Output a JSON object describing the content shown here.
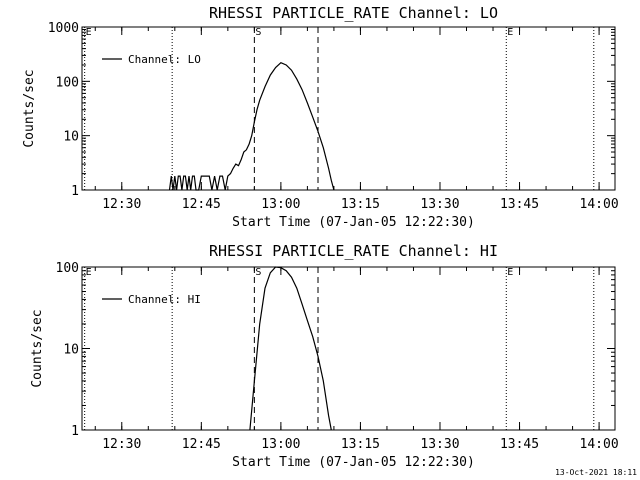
{
  "chart_data": [
    {
      "type": "line",
      "title": "RHESSI PARTICLE_RATE Channel: LO",
      "xlabel": "Start Time (07-Jan-05 12:22:30)",
      "ylabel": "Counts/sec",
      "y_scale": "log",
      "ylim": [
        1,
        1000
      ],
      "xlim": [
        "12:22:30",
        "14:03:00"
      ],
      "x_ticks": [
        "12:30",
        "12:45",
        "13:00",
        "13:15",
        "13:30",
        "13:45",
        "14:00"
      ],
      "y_ticks": [
        "1",
        "10",
        "100",
        "1000"
      ],
      "legend": {
        "position": "top-left",
        "entries": [
          "Channel: LO"
        ]
      },
      "markers": [
        {
          "label": "E",
          "time": "12:23:00",
          "style": "dotted"
        },
        {
          "label": "",
          "time": "12:39:30",
          "style": "dotted"
        },
        {
          "label": "S",
          "time": "12:55:00",
          "style": "dashed"
        },
        {
          "label": "",
          "time": "13:07:00",
          "style": "dashed"
        },
        {
          "label": "E",
          "time": "13:42:30",
          "style": "dotted"
        },
        {
          "label": "",
          "time": "13:59:00",
          "style": "dotted"
        }
      ],
      "series": [
        {
          "name": "Channel: LO",
          "points": [
            [
              "12:39:00",
              1
            ],
            [
              "12:39:20",
              1.8
            ],
            [
              "12:39:40",
              1
            ],
            [
              "12:40:00",
              1.8
            ],
            [
              "12:40:20",
              1
            ],
            [
              "12:40:40",
              1.8
            ],
            [
              "12:41:00",
              1.8
            ],
            [
              "12:41:20",
              1
            ],
            [
              "12:41:40",
              1.8
            ],
            [
              "12:42:00",
              1.8
            ],
            [
              "12:42:20",
              1
            ],
            [
              "12:42:40",
              1.8
            ],
            [
              "12:43:00",
              1
            ],
            [
              "12:43:20",
              1.8
            ],
            [
              "12:43:40",
              1.8
            ],
            [
              "12:44:00",
              1
            ],
            [
              "12:44:30",
              1
            ],
            [
              "12:45:00",
              1.8
            ],
            [
              "12:45:30",
              1.8
            ],
            [
              "12:46:00",
              1.8
            ],
            [
              "12:46:30",
              1.8
            ],
            [
              "12:47:00",
              1
            ],
            [
              "12:47:30",
              1.8
            ],
            [
              "12:48:00",
              1
            ],
            [
              "12:48:30",
              1.8
            ],
            [
              "12:49:00",
              1.8
            ],
            [
              "12:49:30",
              1
            ],
            [
              "12:50:00",
              1.8
            ],
            [
              "12:50:30",
              2
            ],
            [
              "12:51:00",
              2.5
            ],
            [
              "12:51:30",
              3
            ],
            [
              "12:52:00",
              2.8
            ],
            [
              "12:52:30",
              3.6
            ],
            [
              "12:53:00",
              5
            ],
            [
              "12:53:30",
              5.5
            ],
            [
              "12:54:00",
              7
            ],
            [
              "12:54:30",
              10
            ],
            [
              "12:55:00",
              18
            ],
            [
              "12:55:30",
              30
            ],
            [
              "12:56:00",
              45
            ],
            [
              "12:57:00",
              80
            ],
            [
              "12:58:00",
              130
            ],
            [
              "12:59:00",
              180
            ],
            [
              "13:00:00",
              220
            ],
            [
              "13:01:00",
              200
            ],
            [
              "13:02:00",
              160
            ],
            [
              "13:03:00",
              110
            ],
            [
              "13:04:00",
              70
            ],
            [
              "13:05:00",
              40
            ],
            [
              "13:06:00",
              22
            ],
            [
              "13:07:00",
              12
            ],
            [
              "13:08:00",
              6
            ],
            [
              "13:09:00",
              2.5
            ],
            [
              "13:09:30",
              1.5
            ],
            [
              "13:10:00",
              1
            ]
          ]
        }
      ]
    },
    {
      "type": "line",
      "title": "RHESSI PARTICLE_RATE Channel: HI",
      "xlabel": "Start Time (07-Jan-05 12:22:30)",
      "ylabel": "Counts/sec",
      "y_scale": "log",
      "ylim": [
        1,
        100
      ],
      "xlim": [
        "12:22:30",
        "14:03:00"
      ],
      "x_ticks": [
        "12:30",
        "12:45",
        "13:00",
        "13:15",
        "13:30",
        "13:45",
        "14:00"
      ],
      "y_ticks": [
        "1",
        "10",
        "100"
      ],
      "legend": {
        "position": "top-left",
        "entries": [
          "Channel: HI"
        ]
      },
      "markers": [
        {
          "label": "E",
          "time": "12:23:00",
          "style": "dotted"
        },
        {
          "label": "",
          "time": "12:39:30",
          "style": "dotted"
        },
        {
          "label": "S",
          "time": "12:55:00",
          "style": "dashed"
        },
        {
          "label": "",
          "time": "13:07:00",
          "style": "dashed"
        },
        {
          "label": "E",
          "time": "13:42:30",
          "style": "dotted"
        },
        {
          "label": "",
          "time": "13:59:00",
          "style": "dotted"
        }
      ],
      "series": [
        {
          "name": "Channel: HI",
          "points": [
            [
              "12:54:10",
              1
            ],
            [
              "12:55:00",
              4
            ],
            [
              "12:56:00",
              20
            ],
            [
              "12:57:00",
              55
            ],
            [
              "12:58:00",
              85
            ],
            [
              "12:59:00",
              100
            ],
            [
              "13:00:00",
              98
            ],
            [
              "13:01:00",
              90
            ],
            [
              "13:02:00",
              75
            ],
            [
              "13:03:00",
              55
            ],
            [
              "13:04:00",
              35
            ],
            [
              "13:05:00",
              22
            ],
            [
              "13:06:00",
              14
            ],
            [
              "13:07:00",
              8
            ],
            [
              "13:08:00",
              4
            ],
            [
              "13:09:00",
              1.5
            ],
            [
              "13:09:30",
              1
            ]
          ]
        }
      ]
    }
  ],
  "footer": {
    "timestamp": "13-Oct-2021 18:11"
  }
}
